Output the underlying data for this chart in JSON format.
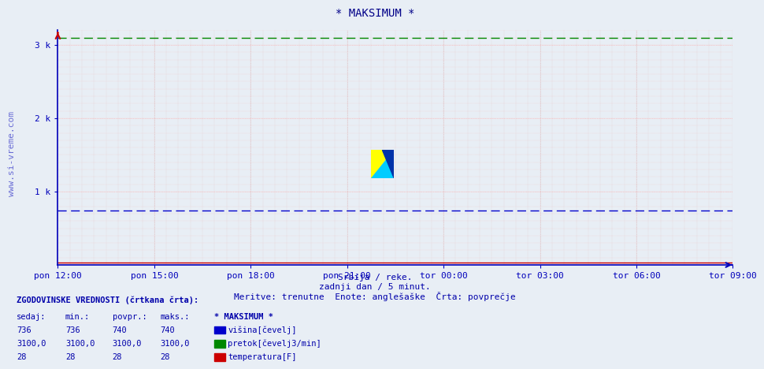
{
  "title": "* MAKSIMUM *",
  "bg_color": "#e8eef5",
  "plot_bg_color": "#e8eef5",
  "fig_bg_color": "#e8eef5",
  "ylim": [
    0,
    3200
  ],
  "yticks": [
    1000,
    2000,
    3000
  ],
  "ytick_labels": [
    "1 k",
    "2 k",
    "3 k"
  ],
  "xtick_labels": [
    "pon 12:00",
    "pon 15:00",
    "pon 18:00",
    "pon 21:00",
    "tor 00:00",
    "tor 03:00",
    "tor 06:00",
    "tor 09:00"
  ],
  "n_points": 216,
  "visina_value": 740,
  "pretok_value": 3100,
  "temperatura_value": 28,
  "visina_color": "#0000cc",
  "pretok_color": "#008800",
  "temperatura_color": "#cc0000",
  "subtitle1": "Srbija / reke.",
  "subtitle2": "zadnji dan / 5 minut.",
  "subtitle3": "Meritve: trenutne  Enote: anglešaške  Črta: povprečje",
  "watermark": "www.si-vreme.com",
  "legend_title": "* MAKSIMUM *",
  "legend_items": [
    "višina[čevelj]",
    "pretok[čevelj3/min]",
    "temperatura[F]"
  ],
  "legend_colors": [
    "#0000cc",
    "#008800",
    "#cc0000"
  ],
  "table_rows": [
    [
      "736",
      "736",
      "740",
      "740"
    ],
    [
      "3100,0",
      "3100,0",
      "3100,0",
      "3100,0"
    ],
    [
      "28",
      "28",
      "28",
      "28"
    ]
  ],
  "hist_label": "ZGODOVINSKE VREDNOSTI (črtkana črta):",
  "grid_color_h": "#ffaaaa",
  "grid_color_v": "#ddaaaa",
  "axis_color": "#0000bb",
  "title_color": "#000088",
  "text_color": "#0000aa"
}
